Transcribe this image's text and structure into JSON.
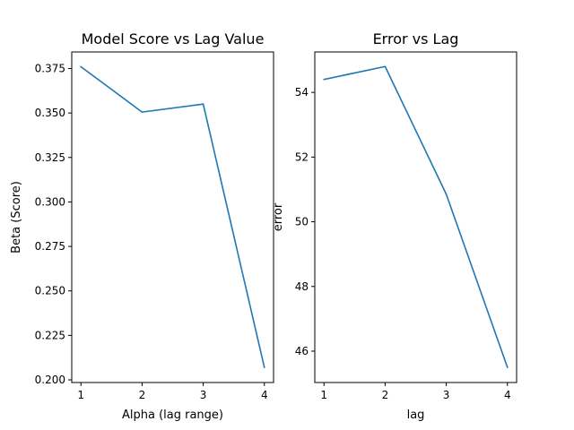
{
  "chart_data": [
    {
      "type": "line",
      "title": "Model Score vs Lag Value",
      "xlabel": "Alpha (lag range)",
      "ylabel": "Beta (Score)",
      "x": [
        1,
        2,
        3,
        4
      ],
      "xticks": [
        "1",
        "2",
        "3",
        "4"
      ],
      "yticks": [
        "0.200",
        "0.225",
        "0.250",
        "0.275",
        "0.300",
        "0.325",
        "0.350",
        "0.375"
      ],
      "xlim": [
        0.85,
        4.15
      ],
      "ylim": [
        0.1985,
        0.3843
      ],
      "series": [
        {
          "values": [
            0.376,
            0.3505,
            0.355,
            0.207
          ],
          "color": "#1f77b4"
        }
      ],
      "grid": false
    },
    {
      "type": "line",
      "title": "Error vs Lag",
      "xlabel": "lag",
      "ylabel": "error",
      "x": [
        1,
        2,
        3,
        4
      ],
      "xticks": [
        "1",
        "2",
        "3",
        "4"
      ],
      "yticks": [
        "46",
        "48",
        "50",
        "52",
        "54"
      ],
      "xlim": [
        0.85,
        4.15
      ],
      "ylim": [
        45.03,
        55.25
      ],
      "series": [
        {
          "values": [
            54.4,
            54.8,
            50.85,
            45.5
          ],
          "color": "#1f77b4"
        }
      ],
      "grid": false
    }
  ]
}
